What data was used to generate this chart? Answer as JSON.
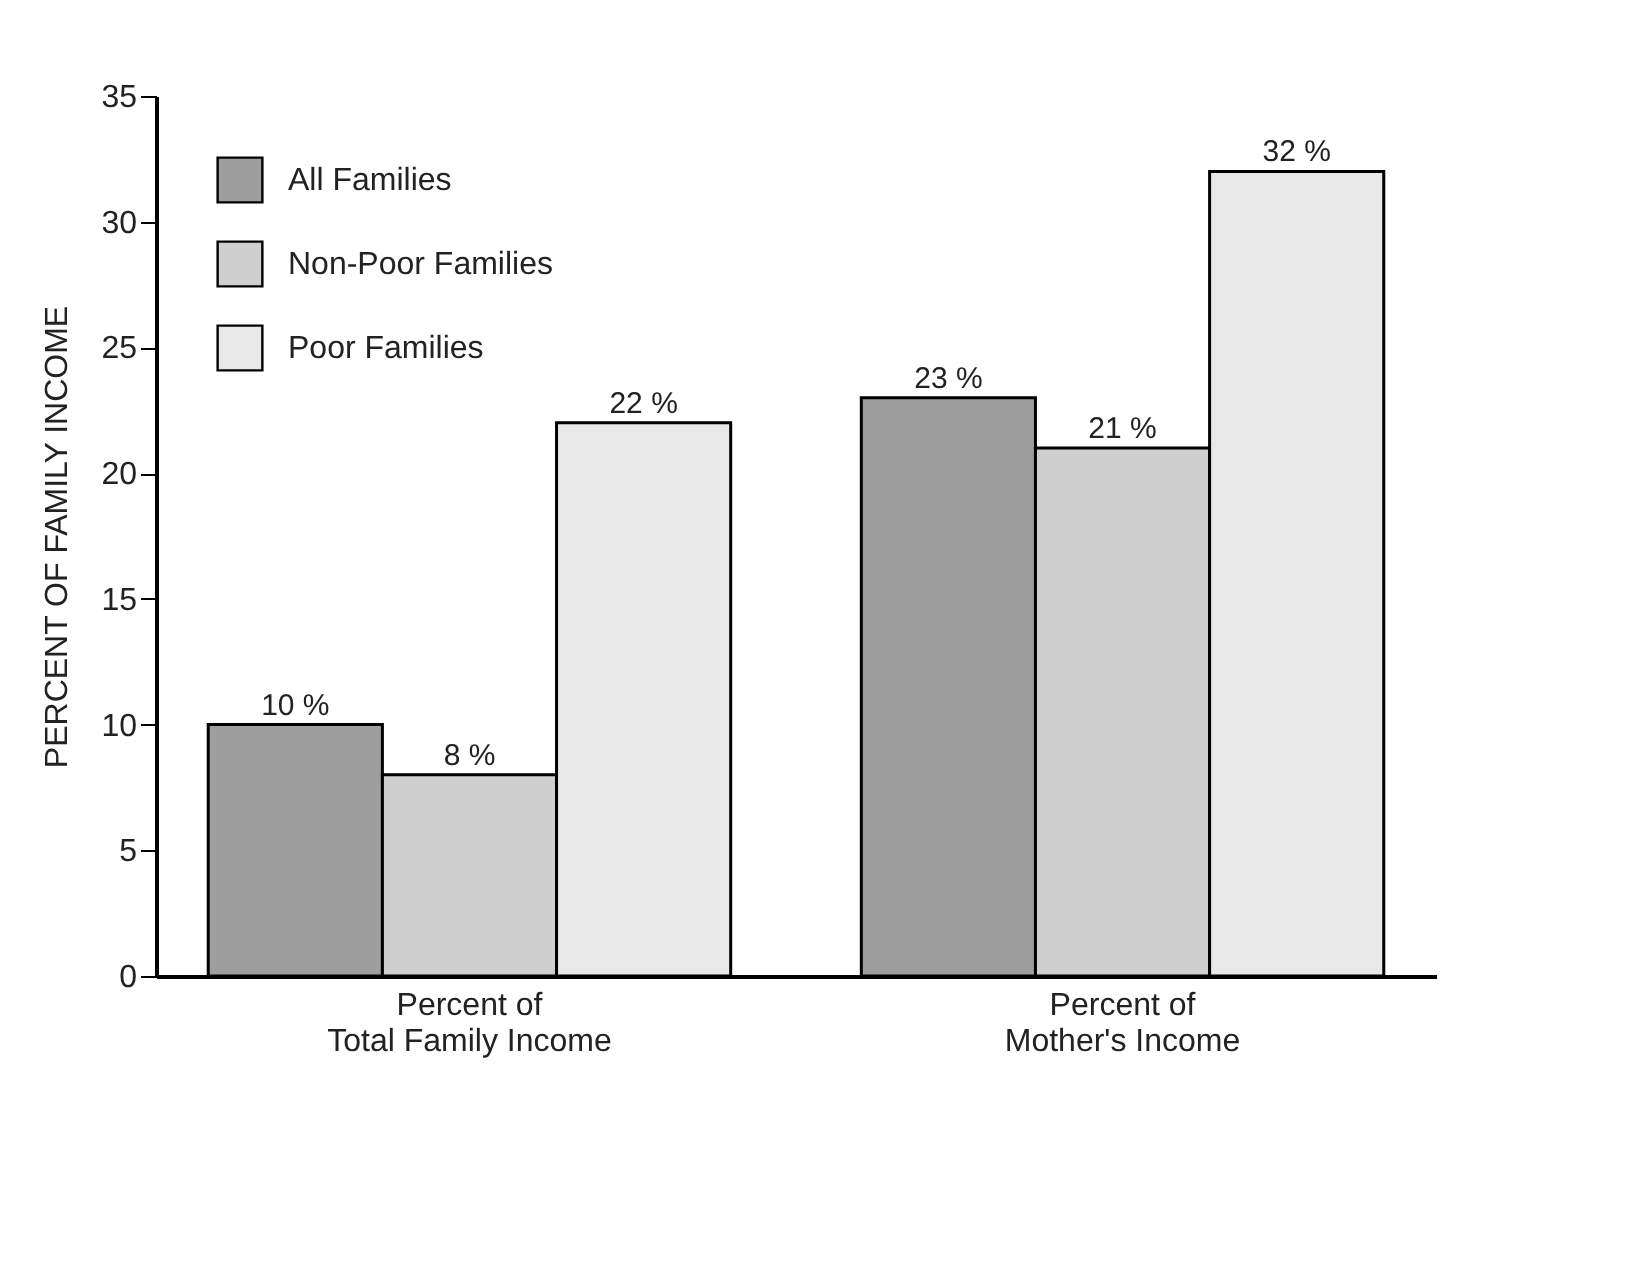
{
  "chart_data": {
    "type": "bar",
    "ylabel": "PERCENT OF FAMILY INCOME",
    "categories": [
      "Percent of\nTotal Family Income",
      "Percent of\nMother's Income"
    ],
    "series": [
      {
        "name": "All Families",
        "color": "#9e9e9e",
        "values": [
          10,
          23
        ],
        "value_labels": [
          "10 %",
          "23 %"
        ]
      },
      {
        "name": "Non-Poor Families",
        "color": "#cfcfcf",
        "values": [
          8,
          21
        ],
        "value_labels": [
          "8 %",
          "21 %"
        ]
      },
      {
        "name": "Poor Families",
        "color": "#e8e8e8",
        "values": [
          22,
          32
        ],
        "value_labels": [
          "22 %",
          "32 %"
        ]
      }
    ],
    "ylim": [
      0,
      35
    ],
    "yticks": [
      0,
      5,
      10,
      15,
      20,
      25,
      30,
      35
    ],
    "grid": false,
    "legend": "top left"
  }
}
